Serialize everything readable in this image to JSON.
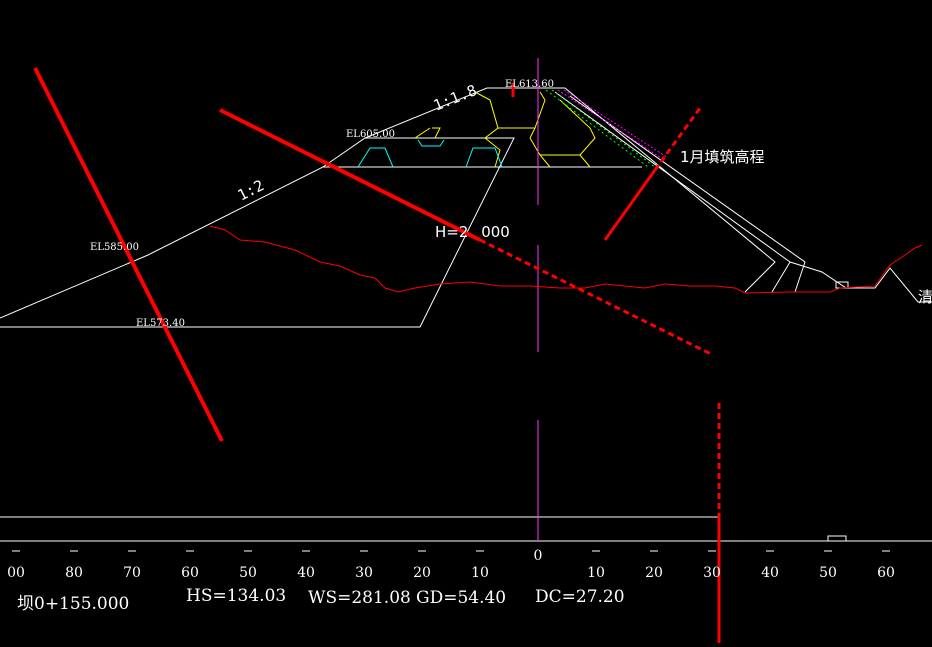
{
  "labels": {
    "el_top": "EL613.60",
    "el_berm_upper": "EL605.00",
    "el_berm_lower": "EL585.00",
    "el_base": "EL573.40",
    "slope_upper": "1:1.8",
    "slope_lower": "1:2",
    "height": "H=2",
    "height_rest": "000",
    "fill_month": "1月填筑高程",
    "right_edge": "清"
  },
  "axis": {
    "ticks_left": [
      "00",
      "80",
      "70",
      "60",
      "50",
      "40",
      "30",
      "20",
      "10"
    ],
    "ticks_right": [
      "0",
      "10",
      "20",
      "30",
      "40",
      "50",
      "60"
    ]
  },
  "footer": {
    "station": "坝0+155.000",
    "hs": "HS=134.03",
    "ws": "WS=281.08",
    "gd": "GD=54.40",
    "dc": "DC=27.20"
  },
  "colors": {
    "background": "#000000",
    "outline": "#ffffff",
    "centerline": "#ff33ff",
    "ground": "#ff0000",
    "annotation": "#ff0000",
    "core": "#ffff00",
    "zone": "#00ffff",
    "filter": "#00ff00",
    "facing": "#ff00ff"
  }
}
